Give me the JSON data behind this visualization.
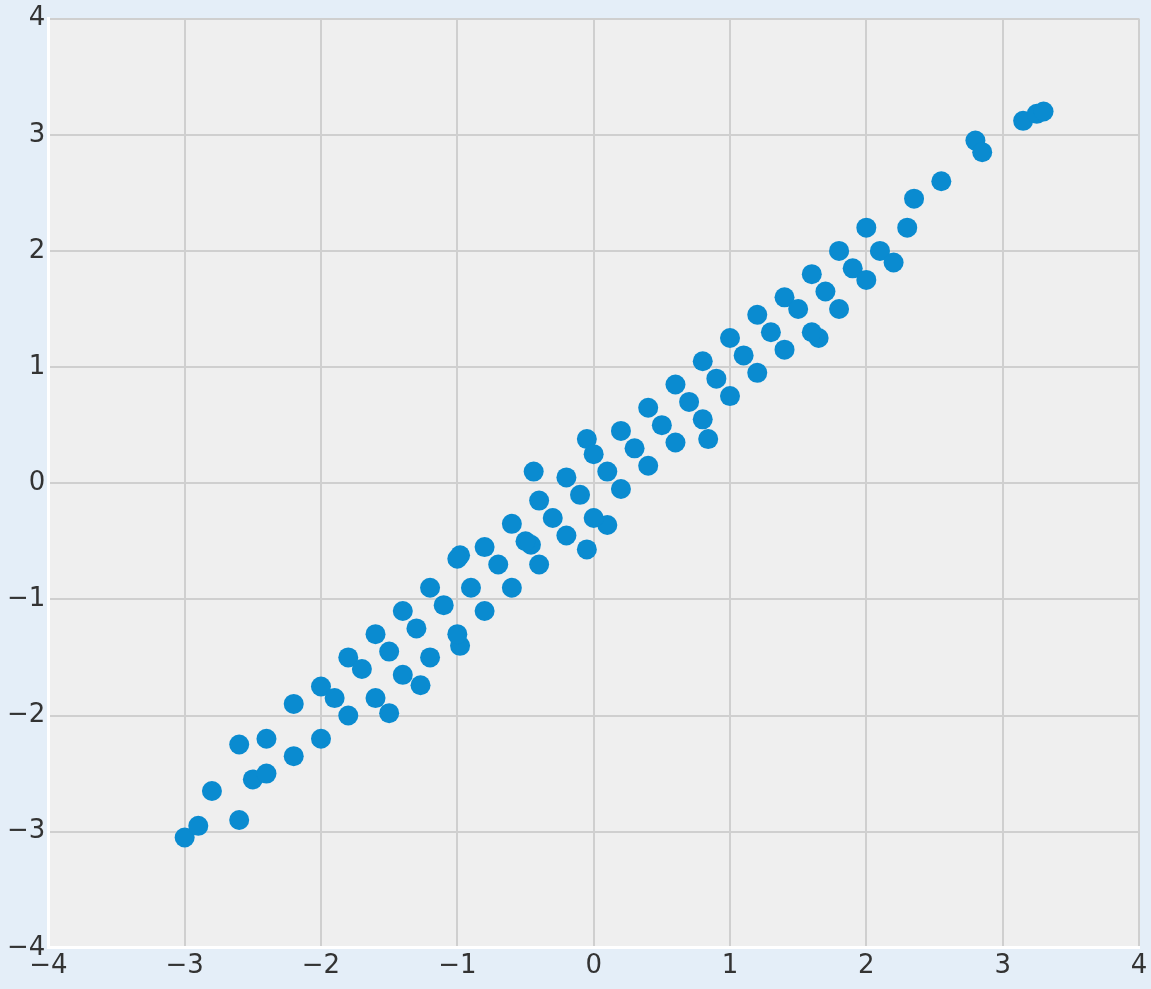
{
  "chart_data": {
    "type": "scatter",
    "marker": "circle",
    "grid": true,
    "legend": false,
    "xlim": [
      -4,
      4
    ],
    "ylim": [
      -4,
      4
    ],
    "xticks": [
      {
        "value": -4,
        "label": "−4"
      },
      {
        "value": -3,
        "label": "−3"
      },
      {
        "value": -2,
        "label": "−2"
      },
      {
        "value": -1,
        "label": "−1"
      },
      0,
      1,
      2,
      3,
      4
    ],
    "yticks": [
      {
        "value": -4,
        "label": "−4"
      },
      {
        "value": -3,
        "label": "−3"
      },
      {
        "value": -2,
        "label": "−2"
      },
      {
        "value": -1,
        "label": "−1"
      },
      0,
      1,
      2,
      3,
      4
    ],
    "series": [
      {
        "color": "#0a8bd0",
        "x": [
          -3.0,
          -2.9,
          -2.6,
          -2.6,
          -2.8,
          -2.5,
          3.15,
          3.25,
          3.3,
          2.8,
          2.85,
          2.55,
          2.35,
          2.3,
          -0.44,
          -0.05,
          -0.05,
          0.1,
          -0.98,
          -1.27,
          -1.5,
          1.65,
          0.84,
          -0.98,
          -0.46,
          -2.4,
          -2.4,
          -2.2,
          -2.2,
          -2.0,
          -2.0,
          -1.9,
          -1.8,
          -1.8,
          -1.7,
          -1.6,
          -1.6,
          -1.5,
          -1.4,
          -1.4,
          -1.3,
          -1.2,
          -1.2,
          -1.1,
          -1.0,
          -1.0,
          -0.9,
          -0.8,
          -0.8,
          -0.7,
          -0.6,
          -0.6,
          -0.5,
          -0.4,
          -0.4,
          -0.3,
          -0.2,
          -0.2,
          -0.1,
          0,
          0,
          0.1,
          0.2,
          0.2,
          0.3,
          0.4,
          0.4,
          0.5,
          0.6,
          0.6,
          0.7,
          0.8,
          0.8,
          0.9,
          1.0,
          1.0,
          1.1,
          1.2,
          1.2,
          1.3,
          1.4,
          1.4,
          1.5,
          1.6,
          1.6,
          1.7,
          1.8,
          1.8,
          1.9,
          2.0,
          2.0,
          2.1,
          2.2
        ],
        "values": [
          -3.05,
          -2.95,
          -2.9,
          -2.25,
          -2.65,
          -2.55,
          3.12,
          3.18,
          3.2,
          2.95,
          2.85,
          2.6,
          2.45,
          2.2,
          0.1,
          0.38,
          -0.57,
          -0.36,
          -1.4,
          -1.74,
          -1.98,
          1.25,
          0.38,
          -0.62,
          -0.53,
          -2.2,
          -2.5,
          -1.9,
          -2.35,
          -1.75,
          -2.2,
          -1.85,
          -1.5,
          -2.0,
          -1.6,
          -1.3,
          -1.85,
          -1.45,
          -1.1,
          -1.65,
          -1.25,
          -0.9,
          -1.5,
          -1.05,
          -0.65,
          -1.3,
          -0.9,
          -0.55,
          -1.1,
          -0.7,
          -0.35,
          -0.9,
          -0.5,
          -0.15,
          -0.7,
          -0.3,
          0.05,
          -0.45,
          -0.1,
          0.25,
          -0.3,
          0.1,
          0.45,
          -0.05,
          0.3,
          0.65,
          0.15,
          0.5,
          0.85,
          0.35,
          0.7,
          1.05,
          0.55,
          0.9,
          1.25,
          0.75,
          1.1,
          1.45,
          0.95,
          1.3,
          1.6,
          1.15,
          1.5,
          1.8,
          1.3,
          1.65,
          2.0,
          1.5,
          1.85,
          2.2,
          1.75,
          2.0,
          1.9
        ]
      }
    ]
  }
}
